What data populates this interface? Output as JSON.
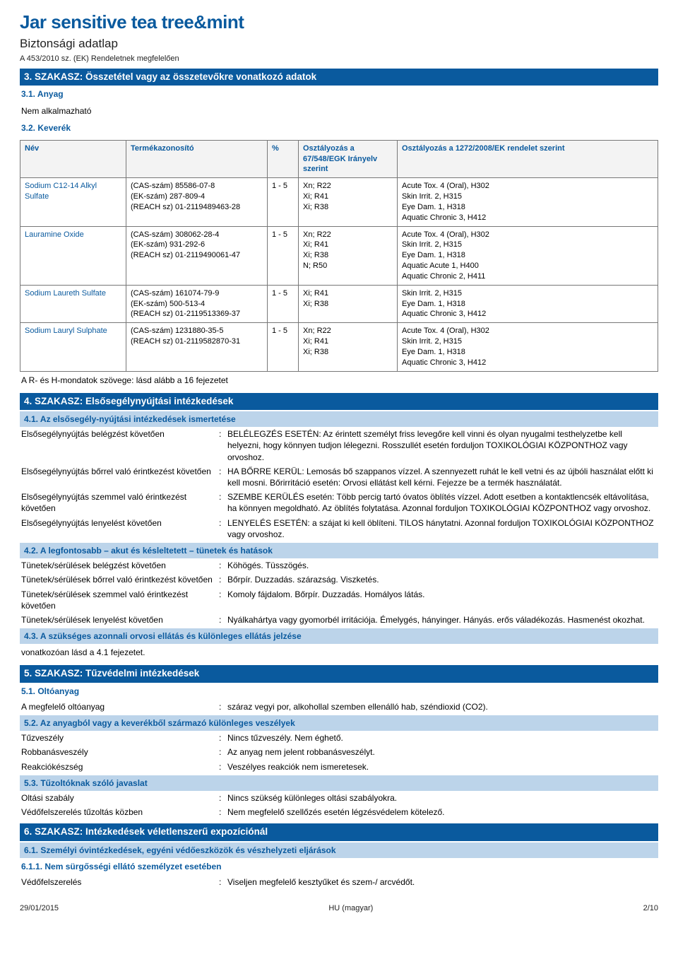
{
  "header": {
    "title": "Jar sensitive tea tree&mint",
    "subtitle": "Biztonsági adatlap",
    "regline": "A 453/2010 sz. (EK) Rendeletnek megfelelően"
  },
  "section3": {
    "bar": "3. SZAKASZ: Összetétel vagy az összetevőkre vonatkozó adatok",
    "sub31_title": "3.1.    Anyag",
    "sub31_body": "Nem alkalmazható",
    "sub32_title": "3.2.    Keverék",
    "table": {
      "head": {
        "name": "Név",
        "id": "Termékazonosító",
        "pct": "%",
        "cls1": "Osztályozás a 67/548/EGK Irányelv szerint",
        "cls2": "Osztályozás a 1272/2008/EK rendelet szerint"
      },
      "rows": [
        {
          "name": "Sodium C12-14 Alkyl Sulfate",
          "id": "(CAS-szám) 85586-07-8\n(EK-szám) 287-809-4\n(REACH sz) 01-2119489463-28",
          "pct": "1 - 5",
          "cls1": "Xn; R22\nXi; R41\nXi; R38",
          "cls2": "Acute Tox. 4 (Oral), H302\nSkin Irrit. 2, H315\nEye Dam. 1, H318\nAquatic Chronic 3, H412"
        },
        {
          "name": "Lauramine Oxide",
          "id": "(CAS-szám) 308062-28-4\n(EK-szám) 931-292-6\n(REACH sz) 01-2119490061-47",
          "pct": "1 - 5",
          "cls1": "Xn; R22\nXi; R41\nXi; R38\nN; R50",
          "cls2": "Acute Tox. 4 (Oral), H302\nSkin Irrit. 2, H315\nEye Dam. 1, H318\nAquatic Acute 1, H400\nAquatic Chronic 2, H411"
        },
        {
          "name": "Sodium Laureth Sulfate",
          "id": "(CAS-szám) 161074-79-9\n(EK-szám) 500-513-4\n(REACH sz) 01-2119513369-37",
          "pct": "1 - 5",
          "cls1": "Xi; R41\nXi; R38",
          "cls2": "Skin Irrit. 2, H315\nEye Dam. 1, H318\nAquatic Chronic 3, H412"
        },
        {
          "name": "Sodium Lauryl Sulphate",
          "id": "(CAS-szám) 1231880-35-5\n(REACH sz) 01-2119582870-31",
          "pct": "1 - 5",
          "cls1": "Xn; R22\nXi; R41\nXi; R38",
          "cls2": "Acute Tox. 4 (Oral), H302\nSkin Irrit. 2, H315\nEye Dam. 1, H318\nAquatic Chronic 3, H412"
        }
      ]
    },
    "table_footer": "A R- és H-mondatok szövege: lásd alább a 16 fejezetet"
  },
  "section4": {
    "bar": "4. SZAKASZ: Elsősegélynyújtási intézkedések",
    "sub41_bar": "4.1.    Az elsősegély-nyújtási intézkedések ismertetése",
    "rows41": [
      {
        "k": "Elsősegélynyújtás belégzést követően",
        "v": "BELÉLEGZÉS ESETÉN: Az érintett személyt friss levegőre kell vinni és olyan nyugalmi testhelyzetbe kell helyezni, hogy könnyen tudjon lélegezni. Rosszullét esetén forduljon TOXIKOLÓGIAI KÖZPONTHOZ vagy orvoshoz."
      },
      {
        "k": "Elsősegélynyújtás bőrrel való érintkezést követően",
        "v": "HA BŐRRE KERÜL: Lemosás bő szappanos vízzel. A szennyezett ruhát le kell vetni és az újbóli használat előtt ki kell mosni. Bőrirritáció esetén: Orvosi ellátást kell kérni. Fejezze be a termék használatát."
      },
      {
        "k": "Elsősegélynyújtás szemmel való érintkezést követően",
        "v": "SZEMBE KERÜLÉS esetén: Több percig tartó óvatos öblítés vízzel. Adott esetben a kontaktlencsék eltávolítása, ha könnyen megoldható. Az öblítés folytatása. Azonnal forduljon TOXIKOLÓGIAI KÖZPONTHOZ vagy orvoshoz."
      },
      {
        "k": "Elsősegélynyújtás lenyelést követően",
        "v": "LENYELÉS ESETÉN: a szájat ki kell öblíteni. TILOS hánytatni. Azonnal forduljon TOXIKOLÓGIAI KÖZPONTHOZ vagy orvoshoz."
      }
    ],
    "sub42_bar": "4.2.    A legfontosabb – akut és késleltetett – tünetek és hatások",
    "rows42": [
      {
        "k": "Tünetek/sérülések belégzést követően",
        "v": "Köhögés. Tüsszögés."
      },
      {
        "k": "Tünetek/sérülések bőrrel való érintkezést követően",
        "v": "Bőrpír. Duzzadás. szárazság. Viszketés."
      },
      {
        "k": "Tünetek/sérülések szemmel való érintkezést követően",
        "v": "Komoly fájdalom. Bőrpír. Duzzadás. Homályos látás."
      },
      {
        "k": "Tünetek/sérülések lenyelést követően",
        "v": "Nyálkahártya vagy gyomorbél irritációja. Émelygés, hányinger. Hányás. erős váladékozás. Hasmenést okozhat."
      }
    ],
    "sub43_bar": "4.3.    A szükséges azonnali orvosi ellátás és különleges ellátás jelzése",
    "sub43_body": "vonatkozóan lásd a 4.1 fejezetet."
  },
  "section5": {
    "bar": "5. SZAKASZ: Tűzvédelmi intézkedések",
    "sub51_title": "5.1.    Oltóanyag",
    "rows51": [
      {
        "k": "A megfelelő oltóanyag",
        "v": "száraz vegyi por, alkohollal szemben ellenálló hab, széndioxid (CO2)."
      }
    ],
    "sub52_bar": "5.2.    Az anyagból vagy a keverékből származó különleges veszélyek",
    "rows52": [
      {
        "k": "Tűzveszély",
        "v": "Nincs tűzveszély. Nem éghető."
      },
      {
        "k": "Robbanásveszély",
        "v": "Az anyag nem jelent robbanásveszélyt."
      },
      {
        "k": "Reakciókészség",
        "v": "Veszélyes reakciók nem ismeretesek."
      }
    ],
    "sub53_bar": "5.3.    Tűzoltóknak szóló javaslat",
    "rows53": [
      {
        "k": "Oltási szabály",
        "v": "Nincs szükség különleges oltási szabályokra."
      },
      {
        "k": "Védőfelszerelés tűzoltás közben",
        "v": "Nem megfelelő szellőzés esetén légzésvédelem kötelező."
      }
    ]
  },
  "section6": {
    "bar": "6. SZAKASZ: Intézkedések véletlenszerű expozíciónál",
    "sub61_bar": "6.1.    Személyi óvintézkedések, egyéni védőeszközök és vészhelyzeti eljárások",
    "sub611_title": "6.1.1.    Nem sürgősségi ellátó személyzet esetében",
    "rows611": [
      {
        "k": "Védőfelszerelés",
        "v": "Viseljen megfelelő kesztyűket és szem-/ arcvédőt."
      }
    ]
  },
  "footer": {
    "date": "29/01/2015",
    "lang": "HU (magyar)",
    "page": "2/10"
  }
}
